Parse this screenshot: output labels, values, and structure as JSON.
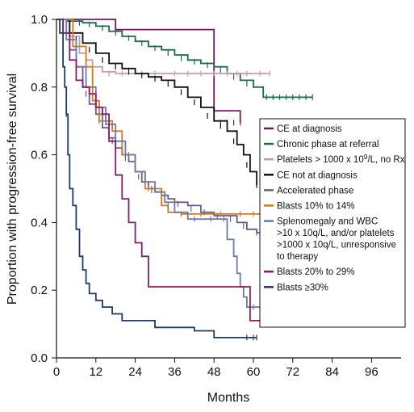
{
  "chart_data": {
    "type": "line",
    "title": "",
    "xlabel": "Months",
    "ylabel": "Proportion with progression-free survival",
    "xlim": [
      0,
      105
    ],
    "ylim": [
      0,
      1.0
    ],
    "xticks": [
      0,
      12,
      24,
      36,
      48,
      60,
      72,
      84,
      96
    ],
    "yticks": [
      0.0,
      0.2,
      0.4,
      0.6,
      0.8,
      1.0
    ],
    "ytick_labels": [
      "0.0",
      "0.2",
      "0.4",
      "0.6",
      "0.8",
      "1.0"
    ],
    "grid": false,
    "legend_position": "right",
    "legend": [
      {
        "series": 0,
        "lines": [
          "CE at diagnosis"
        ]
      },
      {
        "series": 1,
        "lines": [
          "Chronic phase at referral"
        ]
      },
      {
        "series": 2,
        "lines": [
          "Platelets > 1000 x 10",
          "9",
          "/L, no Rx"
        ]
      },
      {
        "series": 3,
        "lines": [
          "CE not at diagnosis"
        ]
      },
      {
        "series": 4,
        "lines": [
          "Accelerated phase"
        ]
      },
      {
        "series": 5,
        "lines": [
          "Blasts 10% to 14%"
        ]
      },
      {
        "series": 6,
        "lines": [
          "Splenomegaly and WBC",
          ">10 x 10q/L, and/or platelets",
          ">1000 x 10q/L, unresponsive",
          "to therapy"
        ]
      },
      {
        "series": 7,
        "lines": [
          "Blasts 20% to 29%"
        ]
      },
      {
        "series": 8,
        "lines": [
          "Blasts ≥30%"
        ]
      }
    ],
    "series": [
      {
        "name": "CE at diagnosis",
        "color": "#7a1465",
        "x": [
          0,
          18,
          48,
          56
        ],
        "y": [
          1.0,
          0.97,
          0.73,
          0.695
        ],
        "censor_x": [
          50,
          52,
          54,
          56
        ],
        "censor_y": [
          0.695,
          0.695,
          0.695,
          0.695
        ]
      },
      {
        "name": "Chronic phase at referral",
        "color": "#1d6b4a",
        "x": [
          0,
          3,
          8,
          12,
          16,
          20,
          24,
          28,
          32,
          36,
          40,
          44,
          48,
          52,
          56,
          60,
          63,
          78
        ],
        "y": [
          1.0,
          0.995,
          0.99,
          0.98,
          0.965,
          0.95,
          0.935,
          0.92,
          0.91,
          0.895,
          0.88,
          0.87,
          0.86,
          0.84,
          0.82,
          0.8,
          0.77,
          0.77
        ],
        "censor_x": [
          2,
          5,
          7,
          10,
          14,
          18,
          22,
          26,
          30,
          34,
          38,
          42,
          46,
          50,
          54,
          58,
          64,
          66,
          68,
          70,
          72,
          74,
          76,
          78
        ],
        "censor_y": [
          0.995,
          0.99,
          0.99,
          0.985,
          0.975,
          0.96,
          0.945,
          0.93,
          0.915,
          0.9,
          0.885,
          0.875,
          0.865,
          0.85,
          0.83,
          0.81,
          0.77,
          0.77,
          0.77,
          0.77,
          0.77,
          0.77,
          0.77,
          0.77
        ]
      },
      {
        "name": "Platelets > 1000 x 10^9/L, no Rx",
        "color": "#c79ab8",
        "x": [
          0,
          4,
          7,
          9,
          11,
          14,
          18,
          65
        ],
        "y": [
          1.0,
          0.95,
          0.9,
          0.88,
          0.86,
          0.845,
          0.84,
          0.84
        ],
        "censor_x": [
          16,
          20,
          26,
          30,
          36,
          40,
          44,
          48,
          52,
          55,
          58,
          62,
          65
        ],
        "censor_y": [
          0.84,
          0.84,
          0.84,
          0.84,
          0.84,
          0.84,
          0.84,
          0.84,
          0.84,
          0.84,
          0.84,
          0.84,
          0.84
        ]
      },
      {
        "name": "CE not at diagnosis",
        "color": "#111111",
        "x": [
          0,
          4,
          8,
          12,
          16,
          20,
          24,
          28,
          32,
          36,
          40,
          44,
          48,
          52,
          55,
          57,
          59,
          61
        ],
        "y": [
          1.0,
          0.96,
          0.93,
          0.9,
          0.87,
          0.855,
          0.84,
          0.83,
          0.82,
          0.8,
          0.77,
          0.74,
          0.7,
          0.67,
          0.63,
          0.6,
          0.55,
          0.51
        ],
        "censor_x": [
          6,
          10,
          14,
          18,
          22,
          26,
          30,
          34,
          38,
          42,
          46,
          50,
          54,
          58,
          61
        ],
        "censor_y": [
          0.94,
          0.91,
          0.88,
          0.86,
          0.845,
          0.835,
          0.825,
          0.81,
          0.785,
          0.755,
          0.715,
          0.685,
          0.64,
          0.57,
          0.51
        ]
      },
      {
        "name": "Accelerated phase",
        "color": "#6c5a8e",
        "x": [
          0,
          2,
          4,
          6,
          8,
          10,
          12,
          14,
          16,
          18,
          20,
          22,
          24,
          26,
          28,
          30,
          32,
          34,
          36,
          40,
          44,
          48,
          52,
          55,
          58,
          61,
          63
        ],
        "y": [
          1.0,
          0.96,
          0.91,
          0.86,
          0.8,
          0.75,
          0.72,
          0.68,
          0.65,
          0.62,
          0.6,
          0.58,
          0.55,
          0.52,
          0.5,
          0.49,
          0.48,
          0.47,
          0.46,
          0.45,
          0.43,
          0.42,
          0.42,
          0.4,
          0.38,
          0.37,
          0.365
        ],
        "censor_x": [
          9,
          13,
          17,
          21,
          25,
          29,
          33,
          37,
          41,
          45,
          49,
          53,
          57,
          61,
          63,
          65
        ],
        "censor_y": [
          0.78,
          0.7,
          0.64,
          0.59,
          0.535,
          0.495,
          0.475,
          0.455,
          0.44,
          0.43,
          0.42,
          0.41,
          0.39,
          0.37,
          0.365,
          0.365
        ]
      },
      {
        "name": "Blasts 10% to 14%",
        "color": "#d27a1f",
        "x": [
          0,
          5,
          9,
          11,
          13,
          17,
          20,
          24,
          27,
          30,
          32,
          34,
          36,
          38,
          63
        ],
        "y": [
          1.0,
          0.92,
          0.86,
          0.76,
          0.7,
          0.67,
          0.6,
          0.55,
          0.5,
          0.5,
          0.45,
          0.43,
          0.43,
          0.425,
          0.425
        ],
        "censor_x": [
          22,
          28,
          38,
          44,
          50,
          56,
          60,
          63
        ],
        "censor_y": [
          0.6,
          0.5,
          0.425,
          0.425,
          0.425,
          0.425,
          0.425,
          0.425
        ]
      },
      {
        "name": "Splenomegaly and WBC >10 x 10q/L, and/or platelets >1000 x 10q/L, unresponsive to therapy",
        "color": "#6b7aa8",
        "x": [
          0,
          3,
          6,
          9,
          12,
          15,
          18,
          21,
          24,
          27,
          30,
          33,
          36,
          40,
          44,
          48,
          52,
          54,
          55,
          56,
          57,
          58,
          65
        ],
        "y": [
          1.0,
          0.94,
          0.86,
          0.8,
          0.74,
          0.69,
          0.64,
          0.6,
          0.55,
          0.52,
          0.49,
          0.46,
          0.43,
          0.41,
          0.41,
          0.41,
          0.35,
          0.3,
          0.25,
          0.21,
          0.18,
          0.15,
          0.15
        ],
        "censor_x": [
          14,
          22,
          29,
          34,
          42,
          47,
          51,
          60,
          65
        ],
        "censor_y": [
          0.7,
          0.6,
          0.5,
          0.45,
          0.41,
          0.41,
          0.41,
          0.15,
          0.15
        ]
      },
      {
        "name": "Blasts 20% to 29%",
        "color": "#861d68",
        "x": [
          0,
          2,
          4,
          6,
          8,
          10,
          12,
          14,
          16,
          18,
          20,
          22,
          24,
          26,
          28,
          34,
          38,
          44,
          48,
          50,
          57,
          59,
          68
        ],
        "y": [
          1.0,
          0.96,
          0.88,
          0.82,
          0.8,
          0.78,
          0.74,
          0.72,
          0.64,
          0.54,
          0.47,
          0.4,
          0.34,
          0.3,
          0.21,
          0.21,
          0.21,
          0.21,
          0.21,
          0.21,
          0.21,
          0.11,
          0.11
        ],
        "censor_x": [
          68
        ],
        "censor_y": [
          0.11
        ]
      },
      {
        "name": "Blasts ≥30%",
        "color": "#1f3a6b",
        "x": [
          0,
          1,
          2,
          2.5,
          3,
          3.5,
          4,
          5,
          6,
          7,
          8,
          9,
          10,
          12,
          14,
          17,
          20,
          24,
          30,
          36,
          42,
          48,
          52,
          56,
          60,
          61
        ],
        "y": [
          1.0,
          0.96,
          0.86,
          0.8,
          0.72,
          0.6,
          0.5,
          0.45,
          0.38,
          0.3,
          0.26,
          0.22,
          0.19,
          0.17,
          0.15,
          0.13,
          0.11,
          0.11,
          0.09,
          0.09,
          0.08,
          0.06,
          0.06,
          0.06,
          0.06,
          0.06
        ],
        "censor_x": [
          3,
          58,
          60,
          61
        ],
        "censor_y": [
          0.72,
          0.06,
          0.06,
          0.06
        ]
      }
    ]
  }
}
